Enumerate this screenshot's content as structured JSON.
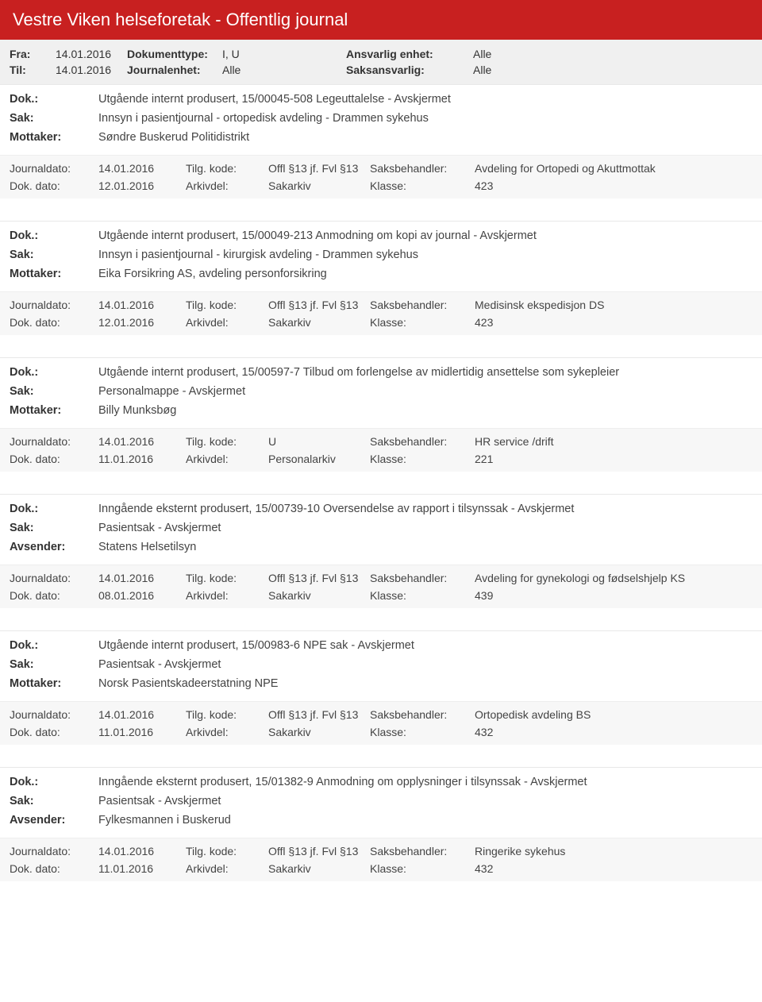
{
  "title": "Vestre Viken helseforetak - Offentlig journal",
  "filters": {
    "fra_label": "Fra:",
    "fra_value": "14.01.2016",
    "til_label": "Til:",
    "til_value": "14.01.2016",
    "doktype_label": "Dokumenttype:",
    "doktype_value": "I, U",
    "journalenhet_label": "Journalenhet:",
    "journalenhet_value": "Alle",
    "ansvarlig_label": "Ansvarlig enhet:",
    "ansvarlig_value": "Alle",
    "saksansvarlig_label": "Saksansvarlig:",
    "saksansvarlig_value": "Alle"
  },
  "labels": {
    "dok": "Dok.:",
    "sak": "Sak:",
    "mottaker": "Mottaker:",
    "avsender": "Avsender:",
    "journaldato": "Journaldato:",
    "dokdato": "Dok. dato:",
    "tilgkode": "Tilg. kode:",
    "arkivdel": "Arkivdel:",
    "saksbehandler": "Saksbehandler:",
    "klasse": "Klasse:"
  },
  "entries": [
    {
      "dok": "Utgående internt produsert, 15/00045-508 Legeuttalelse - Avskjermet",
      "sak": "Innsyn i pasientjournal - ortopedisk avdeling - Drammen sykehus",
      "party_label": "Mottaker:",
      "party_value": "Søndre Buskerud Politidistrikt",
      "journaldato": "14.01.2016",
      "tilgkode": "Offl §13 jf. Fvl §13",
      "saksbehandler": "Avdeling for Ortopedi og Akuttmottak",
      "dokdato": "12.01.2016",
      "arkivdel": "Sakarkiv",
      "klasse": "423"
    },
    {
      "dok": "Utgående internt produsert, 15/00049-213 Anmodning om kopi av journal - Avskjermet",
      "sak": "Innsyn i pasientjournal - kirurgisk avdeling - Drammen sykehus",
      "party_label": "Mottaker:",
      "party_value": "Eika Forsikring AS, avdeling personforsikring",
      "journaldato": "14.01.2016",
      "tilgkode": "Offl §13 jf. Fvl §13",
      "saksbehandler": "Medisinsk ekspedisjon DS",
      "dokdato": "12.01.2016",
      "arkivdel": "Sakarkiv",
      "klasse": "423"
    },
    {
      "dok": "Utgående internt produsert, 15/00597-7 Tilbud om forlengelse av midlertidig ansettelse som sykepleier",
      "sak": "Personalmappe - Avskjermet",
      "party_label": "Mottaker:",
      "party_value": "Billy Munksbøg",
      "journaldato": "14.01.2016",
      "tilgkode": "U",
      "saksbehandler": "HR service /drift",
      "dokdato": "11.01.2016",
      "arkivdel": "Personalarkiv",
      "klasse": "221"
    },
    {
      "dok": "Inngående eksternt produsert, 15/00739-10 Oversendelse av rapport i tilsynssak - Avskjermet",
      "sak": "Pasientsak - Avskjermet",
      "party_label": "Avsender:",
      "party_value": "Statens Helsetilsyn",
      "journaldato": "14.01.2016",
      "tilgkode": "Offl §13 jf. Fvl §13",
      "saksbehandler": "Avdeling for gynekologi og fødselshjelp KS",
      "dokdato": "08.01.2016",
      "arkivdel": "Sakarkiv",
      "klasse": "439"
    },
    {
      "dok": "Utgående internt produsert, 15/00983-6 NPE sak - Avskjermet",
      "sak": "Pasientsak - Avskjermet",
      "party_label": "Mottaker:",
      "party_value": "Norsk Pasientskadeerstatning NPE",
      "journaldato": "14.01.2016",
      "tilgkode": "Offl §13 jf. Fvl §13",
      "saksbehandler": "Ortopedisk avdeling BS",
      "dokdato": "11.01.2016",
      "arkivdel": "Sakarkiv",
      "klasse": "432"
    },
    {
      "dok": "Inngående eksternt produsert, 15/01382-9 Anmodning om opplysninger i tilsynssak - Avskjermet",
      "sak": "Pasientsak - Avskjermet",
      "party_label": "Avsender:",
      "party_value": "Fylkesmannen i Buskerud",
      "journaldato": "14.01.2016",
      "tilgkode": "Offl §13 jf. Fvl §13",
      "saksbehandler": "Ringerike sykehus",
      "dokdato": "11.01.2016",
      "arkivdel": "Sakarkiv",
      "klasse": "432"
    }
  ]
}
